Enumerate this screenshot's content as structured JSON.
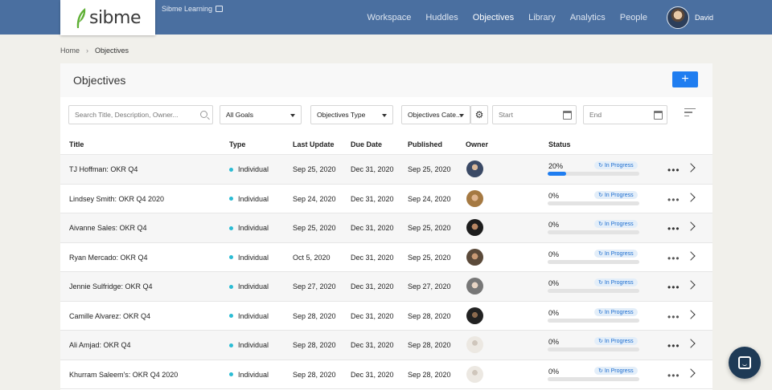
{
  "header": {
    "logo_text": "sibme",
    "account_name": "Sibme Learning",
    "nav": [
      "Workspace",
      "Huddles",
      "Objectives",
      "Library",
      "Analytics",
      "People"
    ],
    "active_nav": "Objectives",
    "user_name": "David"
  },
  "breadcrumb": {
    "home": "Home",
    "current": "Objectives"
  },
  "page": {
    "title": "Objectives",
    "add_label": "+"
  },
  "filters": {
    "search_placeholder": "Search Title, Description, Owner...",
    "goals": "All Goals",
    "type": "Objectives Type",
    "category": "Objectives Cate...",
    "start_placeholder": "Start",
    "end_placeholder": "End"
  },
  "columns": [
    "Title",
    "Type",
    "Last Update",
    "Due Date",
    "Published",
    "Owner",
    "Status"
  ],
  "rows": [
    {
      "title": "TJ Hoffman: OKR Q4",
      "type": "Individual",
      "last_update": "Sep 25, 2020",
      "due": "Dec 31, 2020",
      "published": "Sep 25, 2020",
      "progress": "20%",
      "progress_value": 20,
      "status": "In Progress"
    },
    {
      "title": "Lindsey Smith: OKR Q4 2020",
      "type": "Individual",
      "last_update": "Sep 24, 2020",
      "due": "Dec 31, 2020",
      "published": "Sep 24, 2020",
      "progress": "0%",
      "progress_value": 0,
      "status": "In Progress"
    },
    {
      "title": "Aivanne Sales: OKR Q4",
      "type": "Individual",
      "last_update": "Sep 25, 2020",
      "due": "Dec 31, 2020",
      "published": "Sep 25, 2020",
      "progress": "0%",
      "progress_value": 0,
      "status": "In Progress"
    },
    {
      "title": "Ryan Mercado: OKR Q4",
      "type": "Individual",
      "last_update": "Oct 5, 2020",
      "due": "Dec 31, 2020",
      "published": "Sep 25, 2020",
      "progress": "0%",
      "progress_value": 0,
      "status": "In Progress"
    },
    {
      "title": "Jennie Sulfridge: OKR Q4",
      "type": "Individual",
      "last_update": "Sep 27, 2020",
      "due": "Dec 31, 2020",
      "published": "Sep 27, 2020",
      "progress": "0%",
      "progress_value": 0,
      "status": "In Progress"
    },
    {
      "title": "Camille Alvarez: OKR Q4",
      "type": "Individual",
      "last_update": "Sep 28, 2020",
      "due": "Dec 31, 2020",
      "published": "Sep 28, 2020",
      "progress": "0%",
      "progress_value": 0,
      "status": "In Progress"
    },
    {
      "title": "Ali Amjad: OKR Q4",
      "type": "Individual",
      "last_update": "Sep 28, 2020",
      "due": "Dec 31, 2020",
      "published": "Sep 28, 2020",
      "progress": "0%",
      "progress_value": 0,
      "status": "In Progress"
    },
    {
      "title": "Khurram Saleem's: OKR Q4 2020",
      "type": "Individual",
      "last_update": "Sep 28, 2020",
      "due": "Dec 31, 2020",
      "published": "Sep 28, 2020",
      "progress": "0%",
      "progress_value": 0,
      "status": "In Progress"
    }
  ],
  "colors": {
    "header_bg": "#4a6fa0",
    "accent": "#1f7df0",
    "type_dot": "#2bbcd4",
    "status_text": "#1f6fd0",
    "chat_bg": "#1e3a56"
  },
  "icons": {
    "search": "search-icon",
    "settings": "gear-icon",
    "calendar": "calendar-icon",
    "sort": "sort-icon",
    "more": "ellipsis-icon",
    "open": "chevron-right-icon",
    "status": "refresh-icon",
    "chat": "chat-icon"
  }
}
